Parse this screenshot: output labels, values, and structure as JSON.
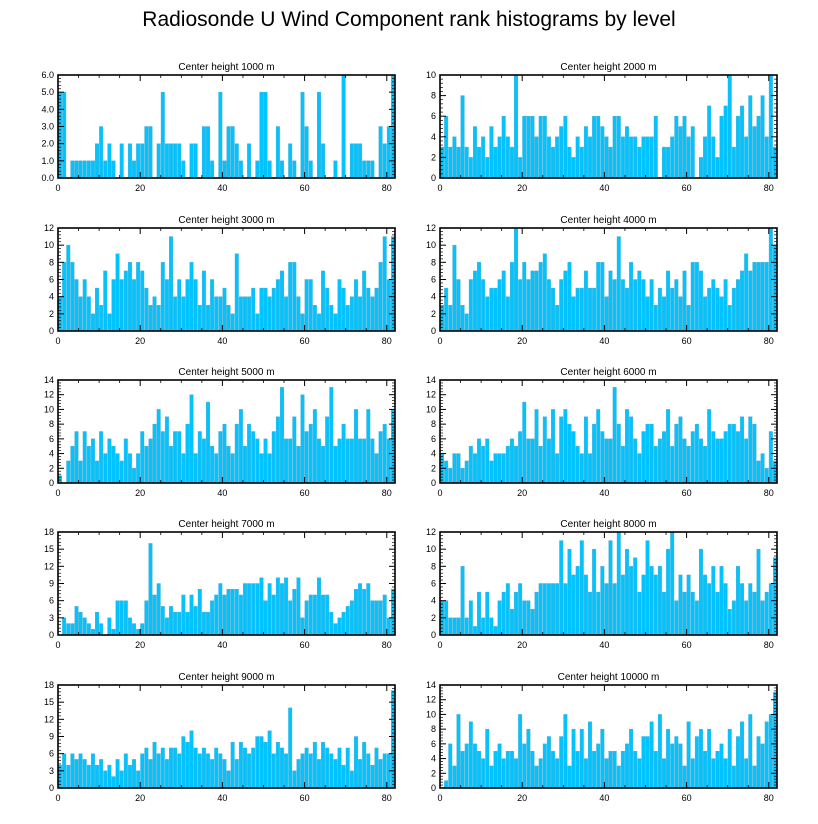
{
  "title": "Radiosonde U Wind Component rank histograms by level",
  "colors": {
    "bar_fill": "#00c4ff",
    "bar_edge": "#4aa8cc",
    "axis": "#000000",
    "background": "#ffffff"
  },
  "chart_data": [
    {
      "type": "bar",
      "title": "Center height 1000 m",
      "xlim": [
        0,
        82
      ],
      "ylim": [
        0,
        6
      ],
      "xticks": [
        0,
        20,
        40,
        60,
        80
      ],
      "yticks": [
        0,
        1,
        2,
        3,
        4,
        5,
        6
      ],
      "ytick_labels": [
        "0.0",
        "1.0",
        "2.0",
        "3.0",
        "4.0",
        "5.0",
        "6.0"
      ],
      "xlabel": "",
      "ylabel": "",
      "values": [
        5,
        5,
        0,
        1,
        1,
        1,
        1,
        1,
        1,
        2,
        3,
        1,
        2,
        1,
        0,
        2,
        0,
        2,
        1,
        2,
        2,
        3,
        3,
        0,
        2,
        5,
        2,
        2,
        2,
        2,
        1,
        0,
        2,
        2,
        0,
        3,
        3,
        1,
        0,
        5,
        1,
        3,
        3,
        2,
        1,
        0,
        2,
        0,
        1,
        5,
        5,
        1,
        0,
        3,
        1,
        0,
        2,
        1,
        0,
        5,
        3,
        1,
        0,
        5,
        2,
        0,
        0,
        1,
        0,
        6,
        0,
        2,
        2,
        2,
        1,
        1,
        1,
        0,
        3,
        2,
        3,
        6
      ]
    },
    {
      "type": "bar",
      "title": "Center height 2000 m",
      "xlim": [
        0,
        82
      ],
      "ylim": [
        0,
        10
      ],
      "xticks": [
        0,
        20,
        40,
        60,
        80
      ],
      "yticks": [
        0,
        2,
        4,
        6,
        8,
        10
      ],
      "ytick_labels": [
        "0",
        "2",
        "4",
        "6",
        "8",
        "10"
      ],
      "xlabel": "",
      "ylabel": "",
      "values": [
        3,
        6,
        3,
        4,
        3,
        8,
        3,
        2,
        5,
        3,
        4,
        2,
        5,
        3,
        4,
        6,
        4,
        3,
        10,
        2,
        6,
        6,
        6,
        4,
        6,
        6,
        4,
        3,
        4,
        5,
        6,
        3,
        2,
        4,
        3,
        5,
        4,
        6,
        6,
        5,
        4,
        3,
        6,
        6,
        4,
        5,
        4,
        4,
        3,
        4,
        4,
        4,
        6,
        0,
        3,
        3,
        4,
        6,
        5,
        6,
        4,
        5,
        0,
        2,
        4,
        7,
        4,
        2,
        6,
        7,
        10,
        3,
        6,
        7,
        4,
        8,
        5,
        6,
        8,
        4,
        10,
        3
      ]
    },
    {
      "type": "bar",
      "title": "Center height 3000 m",
      "xlim": [
        0,
        82
      ],
      "ylim": [
        0,
        12
      ],
      "xticks": [
        0,
        20,
        40,
        60,
        80
      ],
      "yticks": [
        0,
        2,
        4,
        6,
        8,
        10,
        12
      ],
      "ytick_labels": [
        "0",
        "2",
        "4",
        "6",
        "8",
        "10",
        "12"
      ],
      "xlabel": "",
      "ylabel": "",
      "values": [
        4,
        8,
        10,
        8,
        6,
        4,
        6,
        4,
        2,
        5,
        3,
        7,
        2,
        6,
        9,
        6,
        7,
        8,
        6,
        8,
        7,
        5,
        3,
        4,
        3,
        8,
        6,
        11,
        4,
        6,
        4,
        6,
        8,
        6,
        3,
        7,
        3,
        6,
        4,
        4,
        5,
        3,
        2,
        9,
        4,
        4,
        4,
        5,
        2,
        5,
        5,
        4,
        5,
        6,
        7,
        4,
        8,
        8,
        4,
        2,
        6,
        6,
        3,
        2,
        7,
        5,
        3,
        2,
        6,
        5,
        3,
        4,
        6,
        4,
        7,
        5,
        4,
        5,
        8,
        11,
        6,
        11
      ]
    },
    {
      "type": "bar",
      "title": "Center height 4000 m",
      "xlim": [
        0,
        82
      ],
      "ylim": [
        0,
        12
      ],
      "xticks": [
        0,
        20,
        40,
        60,
        80
      ],
      "yticks": [
        0,
        2,
        4,
        6,
        8,
        10,
        12
      ],
      "ytick_labels": [
        "0",
        "2",
        "4",
        "6",
        "8",
        "10",
        "12"
      ],
      "xlabel": "",
      "ylabel": "",
      "values": [
        3,
        5,
        3,
        10,
        6,
        3,
        2,
        6,
        7,
        8,
        6,
        4,
        5,
        5,
        6,
        7,
        4,
        8,
        12,
        6,
        8,
        6,
        7,
        7,
        8,
        9,
        6,
        5,
        3,
        6,
        7,
        8,
        4,
        5,
        5,
        7,
        5,
        5,
        8,
        8,
        4,
        7,
        6,
        11,
        6,
        5,
        8,
        6,
        7,
        6,
        4,
        6,
        3,
        5,
        4,
        7,
        5,
        6,
        4,
        7,
        3,
        8,
        8,
        7,
        4,
        5,
        6,
        5,
        4,
        6,
        3,
        5,
        6,
        7,
        9,
        7,
        8,
        8,
        8,
        8,
        12,
        10
      ]
    },
    {
      "type": "bar",
      "title": "Center height 5000 m",
      "xlim": [
        0,
        82
      ],
      "ylim": [
        0,
        14
      ],
      "xticks": [
        0,
        20,
        40,
        60,
        80
      ],
      "yticks": [
        0,
        2,
        4,
        6,
        8,
        10,
        12,
        14
      ],
      "ytick_labels": [
        "0",
        "2",
        "4",
        "6",
        "8",
        "10",
        "12",
        "14"
      ],
      "xlabel": "",
      "ylabel": "",
      "values": [
        1,
        0,
        3,
        5,
        7,
        3,
        7,
        5,
        6,
        3,
        7,
        4,
        6,
        5,
        4,
        3,
        6,
        4,
        2,
        4,
        7,
        5,
        6,
        8,
        10,
        7,
        9,
        5,
        7,
        7,
        4,
        8,
        12,
        4,
        7,
        6,
        11,
        5,
        4,
        7,
        8,
        5,
        4,
        8,
        10,
        5,
        8,
        7,
        6,
        4,
        6,
        4,
        7,
        9,
        13,
        6,
        6,
        9,
        5,
        12,
        7,
        8,
        10,
        6,
        5,
        9,
        13,
        5,
        6,
        8,
        6,
        6,
        10,
        6,
        6,
        10,
        6,
        4,
        7,
        8,
        6,
        10
      ]
    },
    {
      "type": "bar",
      "title": "Center height 6000 m",
      "xlim": [
        0,
        82
      ],
      "ylim": [
        0,
        14
      ],
      "xticks": [
        0,
        20,
        40,
        60,
        80
      ],
      "yticks": [
        0,
        2,
        4,
        6,
        8,
        10,
        12,
        14
      ],
      "ytick_labels": [
        "0",
        "2",
        "4",
        "6",
        "8",
        "10",
        "12",
        "14"
      ],
      "xlabel": "",
      "ylabel": "",
      "values": [
        4,
        3,
        2,
        4,
        4,
        2,
        3,
        5,
        4,
        6,
        5,
        6,
        3,
        4,
        4,
        4,
        5,
        6,
        5,
        7,
        11,
        6,
        6,
        10,
        5,
        9,
        6,
        10,
        4,
        9,
        10,
        8,
        7,
        5,
        4,
        9,
        4,
        8,
        10,
        7,
        6,
        6,
        13,
        8,
        5,
        10,
        9,
        6,
        4,
        7,
        8,
        8,
        5,
        6,
        7,
        10,
        5,
        8,
        9,
        6,
        5,
        7,
        8,
        6,
        5,
        10,
        7,
        6,
        6,
        7,
        8,
        8,
        7,
        9,
        6,
        9,
        8,
        3,
        4,
        2,
        7,
        3
      ]
    },
    {
      "type": "bar",
      "title": "Center height 7000 m",
      "xlim": [
        0,
        82
      ],
      "ylim": [
        0,
        18
      ],
      "xticks": [
        0,
        20,
        40,
        60,
        80
      ],
      "yticks": [
        0,
        3,
        6,
        9,
        12,
        15,
        18
      ],
      "ytick_labels": [
        "0",
        "3",
        "6",
        "9",
        "12",
        "15",
        "18"
      ],
      "xlabel": "",
      "ylabel": "",
      "values": [
        0,
        3,
        2,
        2,
        5,
        4,
        3,
        2,
        1,
        4,
        2,
        0,
        3,
        1,
        6,
        6,
        6,
        3,
        2,
        1,
        2,
        6,
        16,
        7,
        9,
        5,
        3,
        5,
        4,
        4,
        7,
        4,
        7,
        5,
        8,
        4,
        4,
        6,
        7,
        9,
        7,
        8,
        8,
        8,
        7,
        9,
        9,
        9,
        9,
        10,
        6,
        9,
        7,
        10,
        9,
        10,
        6,
        8,
        10,
        3,
        6,
        7,
        7,
        10,
        7,
        7,
        4,
        2,
        3,
        4,
        5,
        6,
        8,
        9,
        8,
        9,
        6,
        6,
        6,
        7,
        3,
        8
      ]
    },
    {
      "type": "bar",
      "title": "Center height 8000 m",
      "xlim": [
        0,
        82
      ],
      "ylim": [
        0,
        12
      ],
      "xticks": [
        0,
        20,
        40,
        60,
        80
      ],
      "yticks": [
        0,
        2,
        4,
        6,
        8,
        10,
        12
      ],
      "ytick_labels": [
        "0",
        "2",
        "4",
        "6",
        "8",
        "10",
        "12"
      ],
      "xlabel": "",
      "ylabel": "",
      "values": [
        4,
        4,
        2,
        2,
        2,
        8,
        2,
        4,
        1,
        5,
        2,
        5,
        2,
        1,
        4,
        5,
        6,
        3,
        5,
        6,
        4,
        4,
        3,
        5,
        6,
        6,
        6,
        6,
        6,
        11,
        6,
        10,
        7,
        8,
        11,
        7,
        5,
        10,
        5,
        8,
        6,
        11,
        6,
        12,
        7,
        10,
        8,
        9,
        5,
        7,
        11,
        8,
        7,
        8,
        5,
        10,
        12,
        4,
        7,
        5,
        7,
        5,
        4,
        10,
        7,
        6,
        8,
        5,
        8,
        6,
        3,
        4,
        8,
        6,
        4,
        6,
        5,
        10,
        4,
        5,
        6,
        9
      ]
    },
    {
      "type": "bar",
      "title": "Center height 9000 m",
      "xlim": [
        0,
        82
      ],
      "ylim": [
        0,
        18
      ],
      "xticks": [
        0,
        20,
        40,
        60,
        80
      ],
      "yticks": [
        0,
        3,
        6,
        9,
        12,
        15,
        18
      ],
      "ytick_labels": [
        "0",
        "3",
        "6",
        "9",
        "12",
        "15",
        "18"
      ],
      "xlabel": "",
      "ylabel": "",
      "values": [
        4,
        6,
        4,
        6,
        5,
        6,
        5,
        4,
        6,
        4,
        5,
        3,
        4,
        2,
        5,
        3,
        6,
        4,
        5,
        3,
        6,
        7,
        5,
        8,
        6,
        7,
        5,
        7,
        7,
        6,
        9,
        8,
        10,
        7,
        6,
        7,
        6,
        5,
        7,
        6,
        5,
        3,
        8,
        5,
        8,
        7,
        6,
        7,
        9,
        9,
        8,
        10,
        6,
        8,
        7,
        6,
        14,
        3,
        5,
        6,
        7,
        6,
        8,
        5,
        8,
        7,
        6,
        5,
        7,
        4,
        7,
        3,
        9,
        5,
        8,
        6,
        4,
        7,
        5,
        6,
        6,
        17
      ]
    },
    {
      "type": "bar",
      "title": "Center height 10000 m",
      "xlim": [
        0,
        82
      ],
      "ylim": [
        0,
        14
      ],
      "xticks": [
        0,
        20,
        40,
        60,
        80
      ],
      "yticks": [
        0,
        2,
        4,
        6,
        8,
        10,
        12,
        14
      ],
      "ytick_labels": [
        "0",
        "2",
        "4",
        "6",
        "8",
        "10",
        "12",
        "14"
      ],
      "xlabel": "",
      "ylabel": "",
      "values": [
        0,
        1,
        6,
        3,
        10,
        5,
        6,
        9,
        6,
        5,
        4,
        8,
        3,
        5,
        6,
        4,
        5,
        5,
        4,
        10,
        6,
        8,
        5,
        3,
        4,
        6,
        7,
        5,
        4,
        7,
        10,
        3,
        8,
        5,
        8,
        4,
        9,
        5,
        6,
        8,
        4,
        5,
        5,
        3,
        5,
        6,
        8,
        5,
        4,
        7,
        7,
        9,
        5,
        10,
        4,
        8,
        6,
        7,
        6,
        3,
        9,
        4,
        7,
        8,
        5,
        8,
        4,
        5,
        6,
        4,
        8,
        3,
        7,
        9,
        4,
        10,
        3,
        7,
        6,
        9,
        10,
        13
      ]
    }
  ]
}
